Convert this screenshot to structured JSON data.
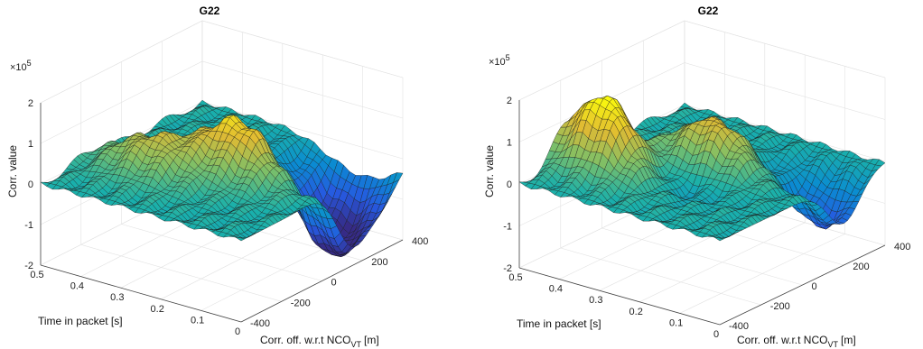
{
  "chart_data": [
    {
      "type": "surface",
      "title": "G22",
      "zlabel": "Corr. value",
      "ylabel_main": "Corr. off. w.r.t NCO",
      "ylabel_sub": "VT",
      "ylabel_unit": "[m]",
      "xlabel": "Time in packet [s]",
      "exponent_label": "×10",
      "exponent_power": "5",
      "xticks": [
        "0",
        "0.1",
        "0.2",
        "0.3",
        "0.4",
        "0.5"
      ],
      "yticks": [
        "-400",
        "-200",
        "0",
        "200",
        "400"
      ],
      "zticks": [
        "-2",
        "-1",
        "0",
        "1",
        "2"
      ],
      "xlim": [
        0,
        0.5
      ],
      "ylim": [
        -400,
        400
      ],
      "zlim": [
        -2,
        2
      ],
      "z_scale": 100000,
      "surface_peaks": [
        {
          "time": 0.05,
          "offset": 150,
          "value": -1.7
        },
        {
          "time": 0.2,
          "offset": 0,
          "value": 1.4
        },
        {
          "time": 0.1,
          "offset": 300,
          "value": -1.6
        },
        {
          "time": 0.35,
          "offset": -150,
          "value": 0.9
        }
      ]
    },
    {
      "type": "surface",
      "title": "G22",
      "zlabel": "Corr. value",
      "ylabel_main": "Corr. off. w.r.t NCO",
      "ylabel_sub": "VT",
      "ylabel_unit": "[m]",
      "xlabel": "Time in packet [s]",
      "exponent_label": "×10",
      "exponent_power": "5",
      "xticks": [
        "0",
        "0.1",
        "0.2",
        "0.3",
        "0.4",
        "0.5"
      ],
      "yticks": [
        "-400",
        "-200",
        "0",
        "200",
        "400"
      ],
      "zticks": [
        "-2",
        "-1",
        "0",
        "1",
        "2"
      ],
      "xlim": [
        0,
        0.5
      ],
      "ylim": [
        -400,
        400
      ],
      "zlim": [
        -2,
        2
      ],
      "z_scale": 100000,
      "surface_peaks": [
        {
          "time": 0.4,
          "offset": -150,
          "value": 2.0
        },
        {
          "time": 0.05,
          "offset": 200,
          "value": -1.2
        },
        {
          "time": 0.25,
          "offset": 50,
          "value": 1.2
        },
        {
          "time": 0.3,
          "offset": -100,
          "value": -0.8
        }
      ]
    }
  ]
}
